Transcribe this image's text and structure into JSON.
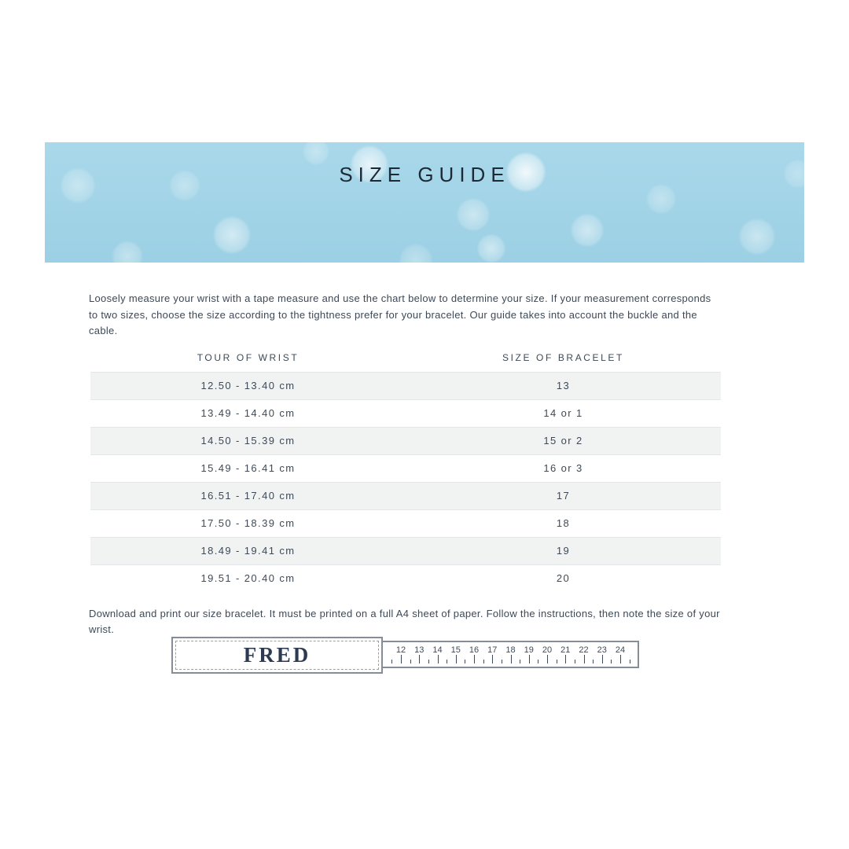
{
  "banner": {
    "title": "SIZE GUIDE"
  },
  "intro_text": "Loosely measure your wrist with a tape measure and use the chart below to determine your size. If your measurement corresponds to two sizes, choose the size according to the tightness prefer for your bracelet. Our guide takes into account the buckle and the cable.",
  "table": {
    "headers": [
      "TOUR OF WRIST",
      "SIZE OF BRACELET"
    ],
    "rows": [
      {
        "wrist": "12.50 - 13.40 cm",
        "size": "13"
      },
      {
        "wrist": "13.49 - 14.40 cm",
        "size": "14 or 1"
      },
      {
        "wrist": "14.50 - 15.39 cm",
        "size": "15 or 2"
      },
      {
        "wrist": "15.49 - 16.41 cm",
        "size": "16 or 3"
      },
      {
        "wrist": "16.51 - 17.40 cm",
        "size": "17"
      },
      {
        "wrist": "17.50 - 18.39 cm",
        "size": "18"
      },
      {
        "wrist": "18.49 - 19.41 cm",
        "size": "19"
      },
      {
        "wrist": "19.51 - 20.40 cm",
        "size": "20"
      }
    ]
  },
  "download_note": "Download and print our size bracelet. It must be printed on a full A4 sheet of paper. Follow the instructions, then note the size of your wrist.",
  "sizer": {
    "brand": "FRED",
    "ruler_numbers": [
      12,
      13,
      14,
      15,
      16,
      17,
      18,
      19,
      20,
      21,
      22,
      23,
      24
    ]
  },
  "colors": {
    "banner_blue": "#9fd2e6",
    "title_navy": "#1d2936",
    "text_navy": "#3d4956",
    "row_gray": "#f1f2f2",
    "row_border": "#e4e7e9",
    "sizer_border": "#878d96"
  }
}
